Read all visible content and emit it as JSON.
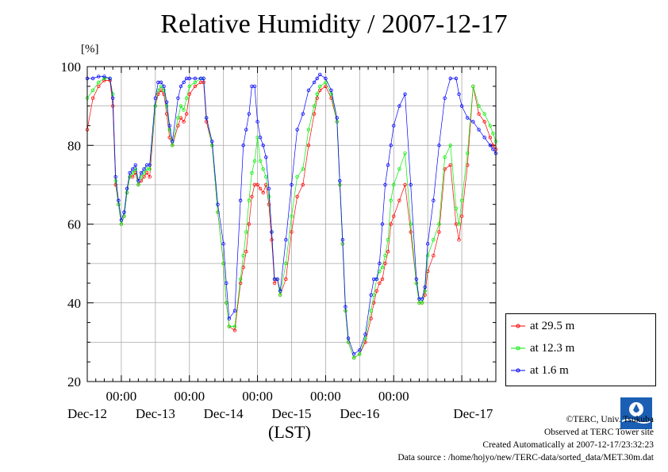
{
  "title": "Relative Humidity / 2007-12-17",
  "y_unit_label": "[%]",
  "x_axis_label": "(LST)",
  "credits": {
    "copyright": "©TERC, Univ. Tsukuba",
    "site": "Observed at TERC Tower site",
    "created": "Created Automatically at 2007-12-17/23:32:23",
    "source": "Data source : /home/hojyo/new/TERC-data/sorted_data/MET.30m.dat"
  },
  "logo_text": "TERC",
  "chart_data": {
    "type": "line",
    "ylim": [
      20,
      100
    ],
    "yticks": [
      20,
      40,
      60,
      80,
      100
    ],
    "xlim": [
      0,
      144
    ],
    "x_unit": "hours since 2007-12-11 12:00 LST",
    "time_labels": [
      "00:00",
      "00:00",
      "00:00",
      "00:00",
      "00:00"
    ],
    "date_labels": [
      "Dec-12",
      "Dec-13",
      "Dec-14",
      "Dec-15",
      "Dec-16",
      "Dec-17"
    ],
    "grid": true,
    "legend_position": "bottom-right",
    "series": [
      {
        "name": "at 29.5 m",
        "color": "#ff0000",
        "x": [
          0,
          2,
          4,
          6,
          8,
          9,
          10,
          11,
          12,
          13,
          14,
          15,
          16,
          17,
          18,
          19,
          20,
          21,
          22,
          24,
          25,
          26,
          27,
          28,
          29,
          30,
          32,
          33,
          34,
          35,
          36,
          38,
          40,
          41,
          42,
          44,
          46,
          48,
          49,
          50,
          52,
          54,
          55,
          56,
          57,
          58,
          59,
          60,
          61,
          62,
          63,
          64,
          65,
          66,
          67,
          68,
          70,
          72,
          74,
          76,
          78,
          80,
          81,
          82,
          84,
          86,
          88,
          89,
          90,
          91,
          92,
          94,
          96,
          98,
          100,
          101,
          102,
          103,
          104,
          105,
          106,
          107,
          108,
          110,
          112,
          114,
          116,
          117,
          118,
          119,
          120,
          122,
          124,
          126,
          128,
          130,
          131,
          132,
          134,
          136,
          138,
          140,
          142,
          143,
          144
        ],
        "y": [
          84,
          92,
          95,
          96.5,
          96.5,
          90,
          70,
          65,
          60,
          62,
          68,
          72,
          72,
          73,
          70,
          71,
          72,
          73,
          72,
          90,
          93,
          94,
          93,
          88,
          82,
          80,
          85,
          87,
          86,
          88,
          93,
          95,
          96,
          96,
          86,
          80,
          63,
          50,
          40,
          34,
          33,
          45,
          49,
          53,
          60,
          67,
          70,
          70,
          69,
          68,
          70,
          65,
          56,
          45,
          46,
          42,
          46,
          58,
          67,
          70,
          80,
          88,
          92,
          94,
          95,
          92,
          86,
          70,
          55,
          38,
          30,
          26,
          27,
          30,
          36,
          40,
          43,
          45,
          46,
          50,
          53,
          60,
          62,
          66,
          70,
          58,
          45,
          40,
          40,
          42,
          48,
          52,
          58,
          74,
          75,
          60,
          56,
          62,
          75,
          95,
          88,
          86,
          82,
          80,
          79
        ]
      },
      {
        "name": "at 12.3 m",
        "color": "#00ee00",
        "x": [
          0,
          2,
          4,
          6,
          8,
          9,
          10,
          11,
          12,
          13,
          14,
          15,
          16,
          17,
          18,
          19,
          20,
          21,
          22,
          24,
          25,
          26,
          27,
          28,
          29,
          30,
          32,
          33,
          34,
          35,
          36,
          38,
          40,
          41,
          42,
          44,
          46,
          48,
          49,
          50,
          52,
          54,
          55,
          56,
          57,
          58,
          59,
          60,
          61,
          62,
          63,
          64,
          65,
          66,
          67,
          68,
          70,
          72,
          74,
          76,
          78,
          80,
          81,
          82,
          84,
          86,
          88,
          89,
          90,
          91,
          92,
          94,
          96,
          98,
          100,
          101,
          102,
          103,
          104,
          105,
          106,
          107,
          108,
          110,
          112,
          114,
          116,
          117,
          118,
          119,
          120,
          122,
          124,
          126,
          128,
          130,
          131,
          132,
          134,
          136,
          138,
          140,
          142,
          143,
          144
        ],
        "y": [
          92,
          94,
          96,
          97,
          97,
          93,
          71,
          65,
          60,
          62,
          68,
          72,
          73,
          74,
          70,
          72,
          73,
          74,
          74,
          90,
          94,
          95,
          94,
          90,
          84,
          80,
          87,
          90,
          89,
          92,
          95,
          96,
          97,
          97,
          87,
          80,
          63,
          50,
          40,
          34,
          34,
          46,
          52,
          58,
          66,
          73,
          76,
          82,
          76,
          74,
          72,
          67,
          58,
          46,
          46,
          42,
          50,
          62,
          72,
          74,
          84,
          90,
          93,
          95,
          96,
          93,
          86,
          70,
          55,
          38,
          30,
          26,
          27,
          31,
          38,
          42,
          46,
          48,
          49,
          52,
          56,
          66,
          70,
          74,
          78,
          60,
          45,
          40,
          40,
          43,
          52,
          56,
          60,
          77,
          80,
          64,
          60,
          66,
          78,
          95,
          90,
          88,
          85,
          83,
          81
        ]
      },
      {
        "name": "at 1.6 m",
        "color": "#0000ff",
        "x": [
          0,
          2,
          4,
          6,
          8,
          9,
          10,
          11,
          12,
          13,
          14,
          15,
          16,
          17,
          18,
          19,
          20,
          21,
          22,
          24,
          25,
          26,
          27,
          28,
          29,
          30,
          32,
          33,
          34,
          35,
          36,
          38,
          40,
          41,
          42,
          44,
          46,
          48,
          49,
          50,
          52,
          54,
          55,
          56,
          57,
          58,
          59,
          60,
          61,
          62,
          63,
          64,
          65,
          66,
          67,
          68,
          70,
          72,
          74,
          76,
          78,
          80,
          81,
          82,
          84,
          86,
          88,
          89,
          90,
          91,
          92,
          94,
          96,
          98,
          100,
          101,
          102,
          103,
          104,
          105,
          106,
          107,
          108,
          110,
          112,
          114,
          116,
          117,
          118,
          119,
          120,
          122,
          124,
          126,
          128,
          130,
          131,
          132,
          134,
          136,
          138,
          140,
          142,
          143,
          144
        ],
        "y": [
          97,
          97,
          97.5,
          97.5,
          97,
          92,
          72,
          66,
          61,
          63,
          69,
          73,
          74,
          75,
          71,
          73,
          74,
          75,
          75,
          92,
          96,
          96,
          95,
          91,
          85,
          81,
          92,
          95,
          96,
          97,
          97,
          97,
          97,
          97,
          87,
          81,
          65,
          55,
          45,
          36,
          38,
          66,
          80,
          84,
          88,
          95,
          95,
          86,
          82,
          80,
          77,
          69,
          58,
          46,
          46,
          43,
          56,
          70,
          84,
          88,
          94,
          96,
          97,
          98,
          97,
          94,
          87,
          71,
          56,
          39,
          31,
          27,
          28,
          32,
          42,
          46,
          46,
          50,
          60,
          70,
          75,
          80,
          85,
          90,
          93,
          70,
          46,
          41,
          41,
          44,
          55,
          66,
          80,
          92,
          97,
          97,
          93,
          90,
          87,
          86,
          84,
          82,
          80,
          79,
          78
        ]
      }
    ]
  }
}
